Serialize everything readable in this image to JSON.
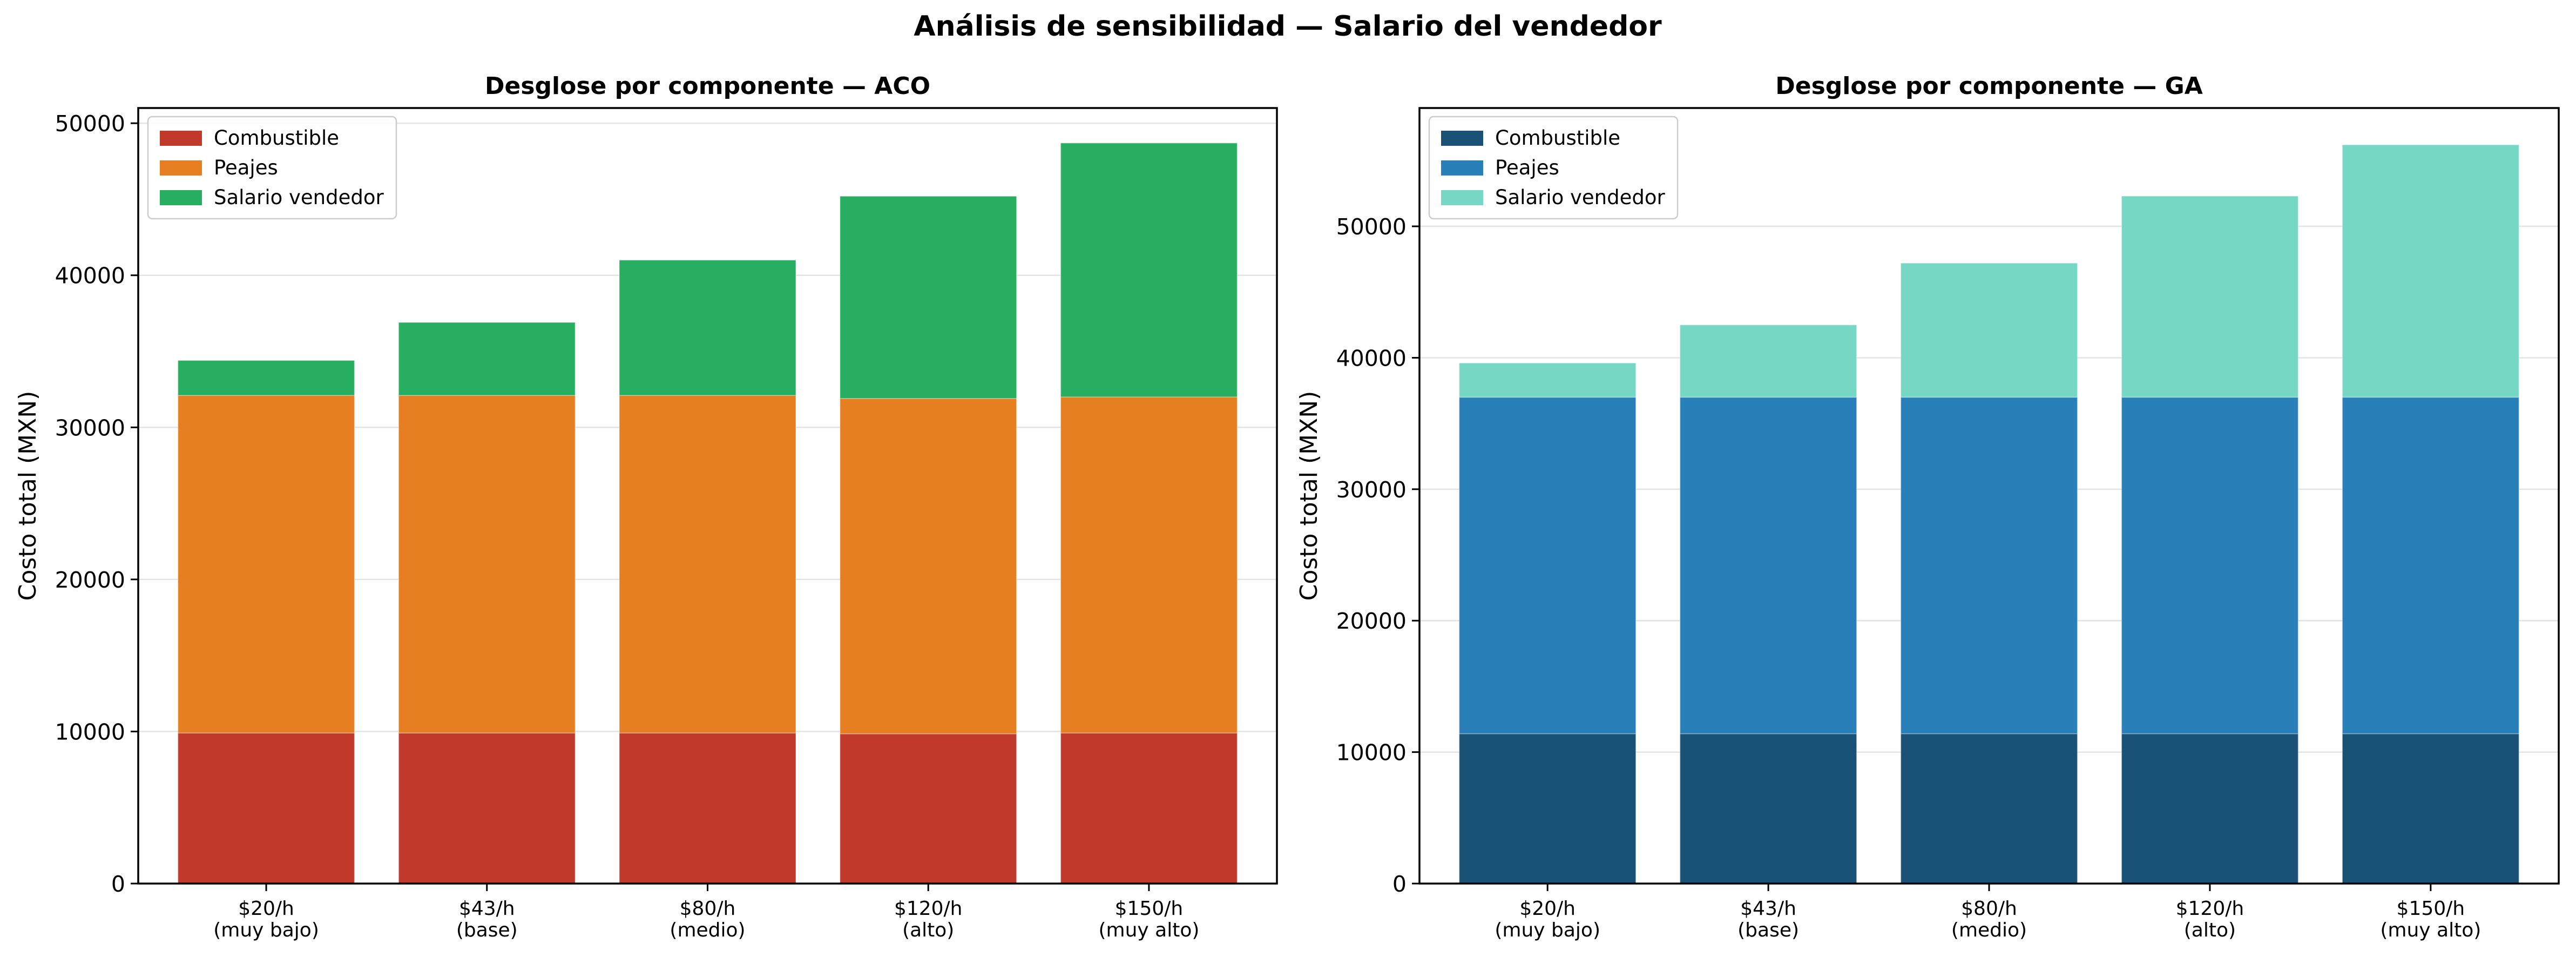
{
  "suptitle": "Análisis de sensibilidad — Salario del vendedor",
  "chart_data": [
    {
      "type": "bar",
      "stacked": true,
      "title": "Desglose por componente — ACO",
      "xlabel": "",
      "ylabel": "Costo total (MXN)",
      "categories": [
        [
          "$20/h",
          "(muy bajo)"
        ],
        [
          "$43/h",
          "(base)"
        ],
        [
          "$80/h",
          "(medio)"
        ],
        [
          "$120/h",
          "(alto)"
        ],
        [
          "$150/h",
          "(muy alto)"
        ]
      ],
      "ylim": [
        0,
        51000
      ],
      "yticks": [
        0,
        10000,
        20000,
        30000,
        40000,
        50000
      ],
      "grid": true,
      "legend_position": "top-left",
      "series": [
        {
          "name": "Combustible",
          "color": "#c0392b",
          "values": [
            9900,
            9900,
            9900,
            9850,
            9900
          ]
        },
        {
          "name": "Peajes",
          "color": "#e67e22",
          "values": [
            22200,
            22200,
            22200,
            22050,
            22100
          ]
        },
        {
          "name": "Salario vendedor",
          "color": "#27ae60",
          "values": [
            2300,
            4800,
            8900,
            13300,
            16700
          ]
        }
      ]
    },
    {
      "type": "bar",
      "stacked": true,
      "title": "Desglose por componente — GA",
      "xlabel": "",
      "ylabel": "Costo total (MXN)",
      "categories": [
        [
          "$20/h",
          "(muy bajo)"
        ],
        [
          "$43/h",
          "(base)"
        ],
        [
          "$80/h",
          "(medio)"
        ],
        [
          "$120/h",
          "(alto)"
        ],
        [
          "$150/h",
          "(muy alto)"
        ]
      ],
      "ylim": [
        0,
        59000
      ],
      "yticks": [
        0,
        10000,
        20000,
        30000,
        40000,
        50000
      ],
      "grid": true,
      "legend_position": "top-left",
      "series": [
        {
          "name": "Combustible",
          "color": "#1a5276",
          "values": [
            11400,
            11400,
            11400,
            11400,
            11400
          ]
        },
        {
          "name": "Peajes",
          "color": "#2980b9",
          "values": [
            25600,
            25600,
            25600,
            25600,
            25600
          ]
        },
        {
          "name": "Salario vendedor",
          "color": "#76d7c4",
          "values": [
            2600,
            5500,
            10200,
            15300,
            19200
          ]
        }
      ]
    }
  ]
}
